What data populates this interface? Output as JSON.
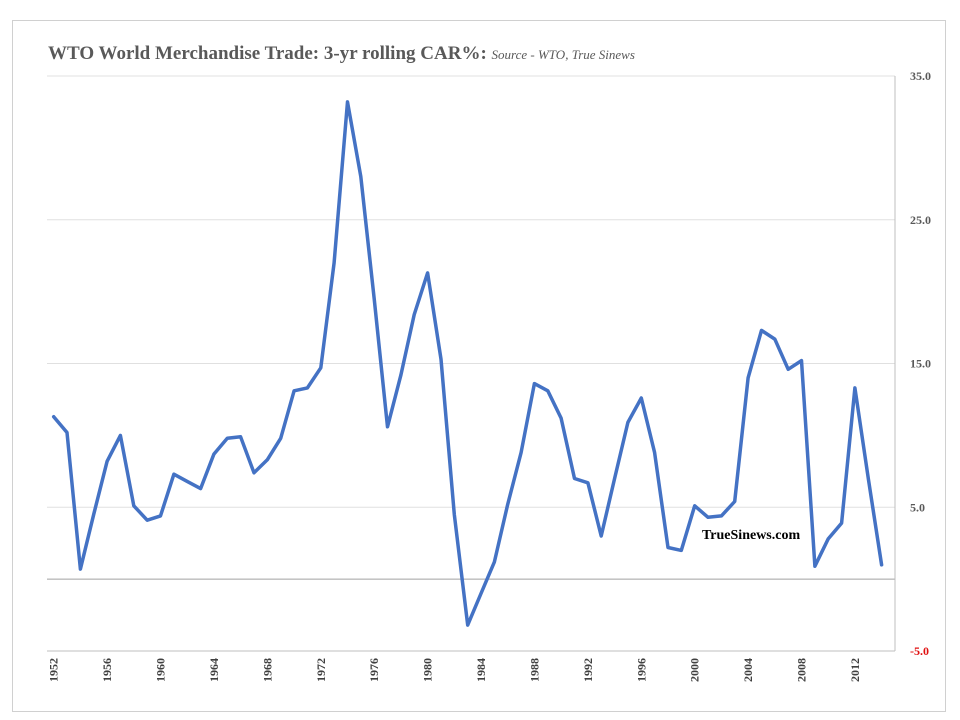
{
  "title": {
    "main": "WTO World Merchandise Trade: 3-yr rolling CAR%:",
    "source": "Source - WTO, True Sinews"
  },
  "watermark": "TrueSinews.com",
  "colors": {
    "line": "#4472c4",
    "grid": "#e0e0e0",
    "zero_line": "#a0a0a0",
    "negative_label": "#e01010"
  },
  "chart_data": {
    "type": "line",
    "title": "WTO World Merchandise Trade: 3-yr rolling CAR%:",
    "subtitle": "Source - WTO, True Sinews",
    "xlabel": "",
    "ylabel": "",
    "ylim": [
      -5.0,
      35.0
    ],
    "y_ticks": [
      -5.0,
      5.0,
      15.0,
      25.0,
      35.0
    ],
    "y_tick_labels": [
      "-5.0",
      "5.0",
      "15.0",
      "25.0",
      "35.0"
    ],
    "y_axis_side": "right",
    "x_tick_labels": [
      "1952",
      "1956",
      "1960",
      "1964",
      "1968",
      "1972",
      "1976",
      "1980",
      "1984",
      "1988",
      "1992",
      "1996",
      "2000",
      "2004",
      "2008",
      "2012"
    ],
    "grid": true,
    "series": [
      {
        "x": [
          1952,
          1953,
          1954,
          1955,
          1956,
          1957,
          1958,
          1959,
          1960,
          1961,
          1962,
          1963,
          1964,
          1965,
          1966,
          1967,
          1968,
          1969,
          1970,
          1971,
          1972,
          1973,
          1974,
          1975,
          1976,
          1977,
          1978,
          1979,
          1980,
          1981,
          1982,
          1983,
          1984,
          1985,
          1986,
          1987,
          1988,
          1989,
          1990,
          1991,
          1992,
          1993,
          1994,
          1995,
          1996,
          1997,
          1998,
          1999,
          2000,
          2001,
          2002,
          2003,
          2004,
          2005,
          2006,
          2007,
          2008,
          2009,
          2010,
          2011,
          2012,
          2013,
          2014
        ],
        "values": [
          11.3,
          10.2,
          0.7,
          4.5,
          8.2,
          10.0,
          5.1,
          4.1,
          4.4,
          7.3,
          6.8,
          6.3,
          8.7,
          9.8,
          9.9,
          7.4,
          8.3,
          9.8,
          13.1,
          13.3,
          14.7,
          22.0,
          33.2,
          28.0,
          19.5,
          10.6,
          14.2,
          18.4,
          21.3,
          15.3,
          4.5,
          -3.2,
          -1.0,
          1.2,
          5.2,
          8.8,
          13.6,
          13.1,
          11.2,
          7.0,
          6.7,
          3.0,
          7.0,
          10.9,
          12.6,
          8.8,
          2.2,
          2.0,
          5.1,
          4.3,
          4.4,
          5.4,
          14.0,
          17.3,
          16.7,
          14.6,
          15.2,
          0.9,
          2.8,
          3.9,
          13.3,
          7.0,
          1.0
        ]
      }
    ]
  }
}
